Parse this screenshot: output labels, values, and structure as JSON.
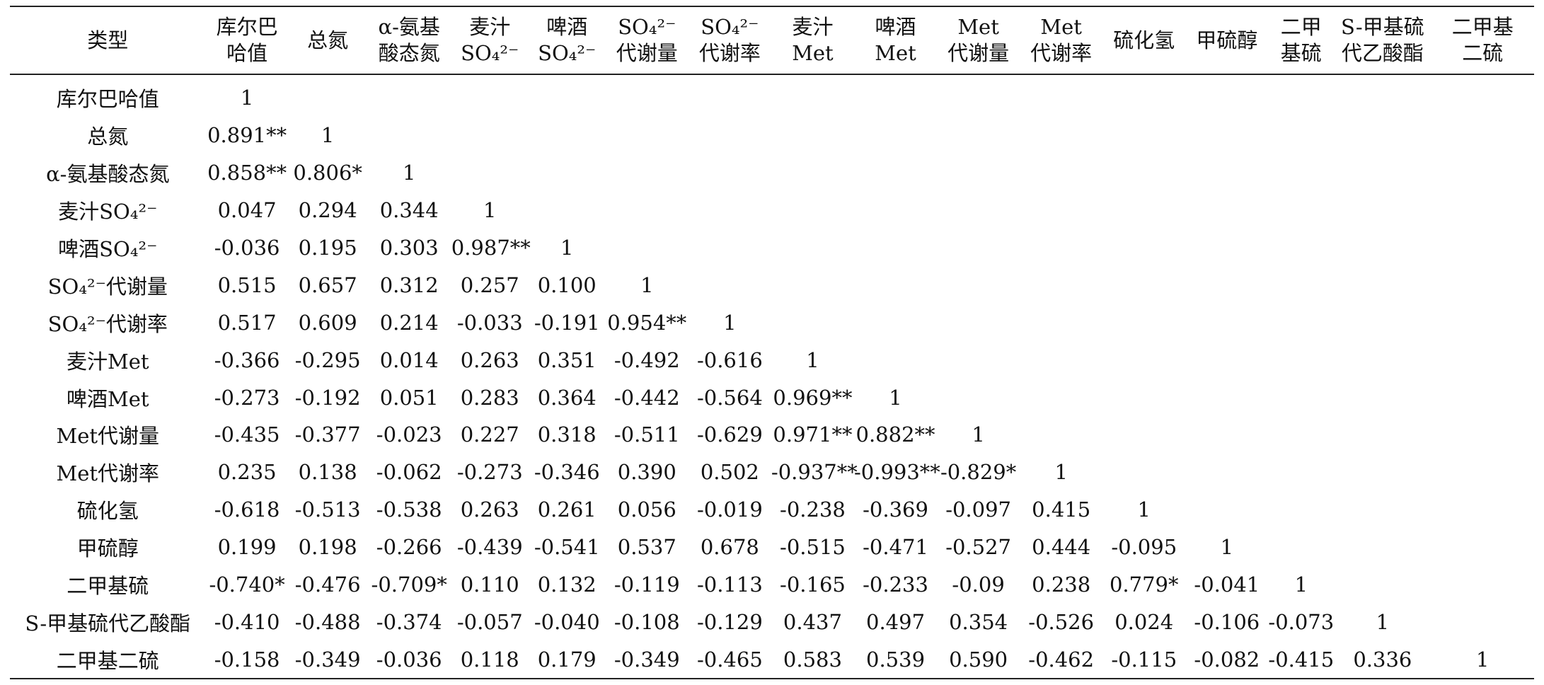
{
  "columns": [
    {
      "key": "type",
      "lines": [
        "类型"
      ]
    },
    {
      "key": "kolbach",
      "lines": [
        "库尔巴",
        "哈值"
      ]
    },
    {
      "key": "tn",
      "lines": [
        "总氮"
      ]
    },
    {
      "key": "fan",
      "lines": [
        "α-氨基",
        "酸态氮"
      ]
    },
    {
      "key": "wort_so4",
      "lines": [
        "麦汁",
        "SO₄²⁻"
      ]
    },
    {
      "key": "beer_so4",
      "lines": [
        "啤酒",
        "SO₄²⁻"
      ]
    },
    {
      "key": "so4_amt",
      "lines": [
        "SO₄²⁻",
        "代谢量"
      ]
    },
    {
      "key": "so4_rate",
      "lines": [
        "SO₄²⁻",
        "代谢率"
      ]
    },
    {
      "key": "wort_met",
      "lines": [
        "麦汁",
        "Met"
      ]
    },
    {
      "key": "beer_met",
      "lines": [
        "啤酒",
        "Met"
      ]
    },
    {
      "key": "met_amt",
      "lines": [
        "Met",
        "代谢量"
      ]
    },
    {
      "key": "met_rate",
      "lines": [
        "Met",
        "代谢率"
      ]
    },
    {
      "key": "h2s",
      "lines": [
        "硫化氢"
      ]
    },
    {
      "key": "mesh",
      "lines": [
        "甲硫醇"
      ]
    },
    {
      "key": "dms",
      "lines": [
        "二甲",
        "基硫"
      ]
    },
    {
      "key": "mta",
      "lines": [
        "S-甲基硫",
        "代乙酸酯"
      ]
    },
    {
      "key": "dmds",
      "lines": [
        "二甲基",
        "二硫"
      ]
    }
  ],
  "rows": [
    {
      "label": "库尔巴哈值",
      "values": [
        "1"
      ]
    },
    {
      "label": "总氮",
      "values": [
        "0.891**",
        "1"
      ]
    },
    {
      "label": "α-氨基酸态氮",
      "values": [
        "0.858**",
        "0.806*",
        "1"
      ]
    },
    {
      "label": "麦汁SO₄²⁻",
      "values": [
        "0.047",
        "0.294",
        "0.344",
        "1"
      ]
    },
    {
      "label": "啤酒SO₄²⁻",
      "values": [
        "-0.036",
        "0.195",
        "0.303",
        "0.987**",
        "1"
      ]
    },
    {
      "label": "SO₄²⁻代谢量",
      "values": [
        "0.515",
        "0.657",
        "0.312",
        "0.257",
        "0.100",
        "1"
      ]
    },
    {
      "label": "SO₄²⁻代谢率",
      "values": [
        "0.517",
        "0.609",
        "0.214",
        "-0.033",
        "-0.191",
        "0.954**",
        "1"
      ]
    },
    {
      "label": "麦汁Met",
      "values": [
        "-0.366",
        "-0.295",
        "0.014",
        "0.263",
        "0.351",
        "-0.492",
        "-0.616",
        "1"
      ]
    },
    {
      "label": "啤酒Met",
      "values": [
        "-0.273",
        "-0.192",
        "0.051",
        "0.283",
        "0.364",
        "-0.442",
        "-0.564",
        "0.969**",
        "1"
      ]
    },
    {
      "label": "Met代谢量",
      "values": [
        "-0.435",
        "-0.377",
        "-0.023",
        "0.227",
        "0.318",
        "-0.511",
        "-0.629",
        "0.971**",
        "0.882**",
        "1"
      ]
    },
    {
      "label": "Met代谢率",
      "values": [
        "0.235",
        "0.138",
        "-0.062",
        "-0.273",
        "-0.346",
        "0.390",
        "0.502",
        "-0.937**",
        "-0.993**",
        "-0.829*",
        "1"
      ]
    },
    {
      "label": "硫化氢",
      "values": [
        "-0.618",
        "-0.513",
        "-0.538",
        "0.263",
        "0.261",
        "0.056",
        "-0.019",
        "-0.238",
        "-0.369",
        "-0.097",
        "0.415",
        "1"
      ]
    },
    {
      "label": "甲硫醇",
      "values": [
        "0.199",
        "0.198",
        "-0.266",
        "-0.439",
        "-0.541",
        "0.537",
        "0.678",
        "-0.515",
        "-0.471",
        "-0.527",
        "0.444",
        "-0.095",
        "1"
      ]
    },
    {
      "label": "二甲基硫",
      "values": [
        "-0.740*",
        "-0.476",
        "-0.709*",
        "0.110",
        "0.132",
        "-0.119",
        "-0.113",
        "-0.165",
        "-0.233",
        "-0.09",
        "0.238",
        "0.779*",
        "-0.041",
        "1"
      ]
    },
    {
      "label": "S-甲基硫代乙酸酯",
      "values": [
        "-0.410",
        "-0.488",
        "-0.374",
        "-0.057",
        "-0.040",
        "-0.108",
        "-0.129",
        "0.437",
        "0.497",
        "0.354",
        "-0.526",
        "0.024",
        "-0.106",
        "-0.073",
        "1"
      ]
    },
    {
      "label": "二甲基二硫",
      "values": [
        "-0.158",
        "-0.349",
        "-0.036",
        "0.118",
        "0.179",
        "-0.349",
        "-0.465",
        "0.583",
        "0.539",
        "0.590",
        "-0.462",
        "-0.115",
        "-0.082",
        "-0.415",
        "0.336",
        "1"
      ]
    }
  ]
}
